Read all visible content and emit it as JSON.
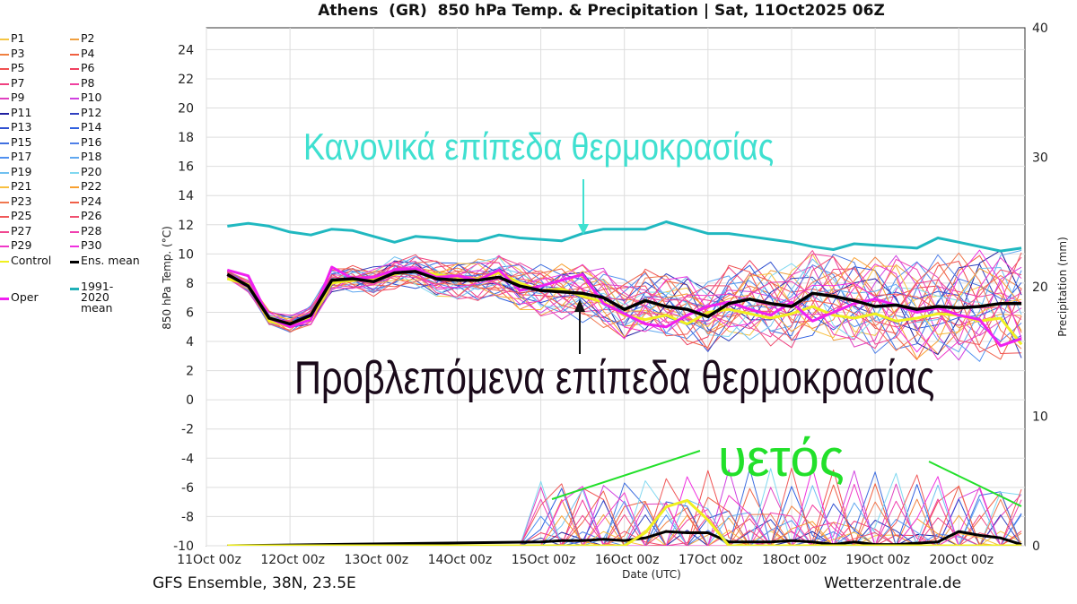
{
  "header": {
    "title": "Athens  (GR)  850 hPa Temp. & Precipitation | Sat, 11Oct2025 06Z"
  },
  "footer": {
    "model": "GFS Ensemble, 38N, 23.5E",
    "source": "Wetterzentrale.de"
  },
  "annotations": {
    "normal": "Κανονικά επίπεδα θερμοκρασίας",
    "forecast": "Προβλεπόμενα επίπεδα θερμοκρασίας",
    "rain": "υετός",
    "normal_color": "#3fe0d0",
    "forecast_color": "#1a0a1a",
    "rain_color": "#22e02a"
  },
  "legend": [
    {
      "label": "P1",
      "color": "#f5c542"
    },
    {
      "label": "P2",
      "color": "#f0a040"
    },
    {
      "label": "P3",
      "color": "#f08040"
    },
    {
      "label": "P4",
      "color": "#f06040"
    },
    {
      "label": "P5",
      "color": "#f05050"
    },
    {
      "label": "P6",
      "color": "#f04060"
    },
    {
      "label": "P7",
      "color": "#f04080"
    },
    {
      "label": "P8",
      "color": "#f040a0"
    },
    {
      "label": "P9",
      "color": "#e040c0"
    },
    {
      "label": "P10",
      "color": "#d040e0"
    },
    {
      "label": "P11",
      "color": "#2020a0"
    },
    {
      "label": "P12",
      "color": "#3040c0"
    },
    {
      "label": "P13",
      "color": "#3050d0"
    },
    {
      "label": "P14",
      "color": "#3060e0"
    },
    {
      "label": "P15",
      "color": "#4070e0"
    },
    {
      "label": "P16",
      "color": "#5080e8"
    },
    {
      "label": "P17",
      "color": "#5090f0"
    },
    {
      "label": "P18",
      "color": "#60a8f0"
    },
    {
      "label": "P19",
      "color": "#70c0f0"
    },
    {
      "label": "P20",
      "color": "#80d8f0"
    },
    {
      "label": "P21",
      "color": "#f8c040"
    },
    {
      "label": "P22",
      "color": "#f8a030"
    },
    {
      "label": "P23",
      "color": "#f07850"
    },
    {
      "label": "P24",
      "color": "#f06048"
    },
    {
      "label": "P25",
      "color": "#f05858"
    },
    {
      "label": "P26",
      "color": "#f05070"
    },
    {
      "label": "P27",
      "color": "#f04890"
    },
    {
      "label": "P28",
      "color": "#f040b0"
    },
    {
      "label": "P29",
      "color": "#f038c8"
    },
    {
      "label": "P30",
      "color": "#f030e0"
    },
    {
      "label": "Control",
      "color": "#f0f020"
    },
    {
      "label": "Ens. mean",
      "color": "#000000"
    },
    {
      "label": "1991-2020 mean",
      "color": "#20b0b8"
    },
    {
      "label": "Oper",
      "color": "#f020f0"
    }
  ],
  "chart_data": {
    "type": "line",
    "title": "Athens  (GR)  850 hPa Temp. & Precipitation | Sat, 11Oct2025 06Z",
    "xlabel": "Date (UTC)",
    "ylabel": "850 hPa Temp. (°C)",
    "y2label": "Precipitation (mm)",
    "ylim": [
      -10,
      25
    ],
    "y2lim": [
      0,
      40
    ],
    "yticks": [
      -10,
      -8,
      -6,
      -4,
      -2,
      0,
      2,
      4,
      6,
      8,
      10,
      12,
      14,
      16,
      18,
      20,
      22,
      24
    ],
    "y2ticks": [
      0,
      10,
      20,
      30,
      40
    ],
    "xticks": [
      "11Oct 00z",
      "12Oct 00z",
      "13Oct 00z",
      "14Oct 00z",
      "15Oct 00z",
      "16Oct 00z",
      "17Oct 00z",
      "18Oct 00z",
      "19Oct 00z",
      "20Oct 00z"
    ],
    "xlim_hours": [
      0,
      235
    ],
    "grid": true,
    "climate_mean": {
      "x": [
        6,
        12,
        18,
        24,
        30,
        36,
        42,
        48,
        54,
        60,
        66,
        72,
        78,
        84,
        90,
        96,
        102,
        108,
        114,
        120,
        126,
        132,
        138,
        144,
        150,
        156,
        162,
        168,
        174,
        180,
        186,
        192,
        198,
        204,
        210,
        216,
        222,
        228,
        234
      ],
      "y": [
        11.9,
        12.1,
        11.9,
        11.5,
        11.3,
        11.7,
        11.6,
        11.2,
        10.8,
        11.2,
        11.1,
        10.9,
        10.9,
        11.3,
        11.1,
        11.0,
        10.9,
        11.4,
        11.7,
        11.7,
        11.7,
        12.2,
        11.8,
        11.4,
        11.4,
        11.2,
        11.0,
        10.8,
        10.5,
        10.3,
        10.7,
        10.6,
        10.5,
        10.4,
        11.1,
        10.8,
        10.5,
        10.2,
        10.4
      ]
    },
    "ens_mean": {
      "x": [
        6,
        12,
        18,
        24,
        30,
        36,
        42,
        48,
        54,
        60,
        66,
        72,
        78,
        84,
        90,
        96,
        102,
        108,
        114,
        120,
        126,
        132,
        138,
        144,
        150,
        156,
        162,
        168,
        174,
        180,
        186,
        192,
        198,
        204,
        210,
        216,
        222,
        228,
        234
      ],
      "y": [
        8.6,
        7.8,
        5.6,
        5.2,
        5.8,
        8.2,
        8.3,
        8.1,
        8.7,
        8.8,
        8.3,
        8.2,
        8.2,
        8.4,
        7.8,
        7.5,
        7.4,
        7.3,
        7.0,
        6.2,
        6.8,
        6.4,
        6.2,
        5.7,
        6.6,
        6.9,
        6.6,
        6.4,
        7.3,
        7.1,
        6.8,
        6.4,
        6.5,
        6.2,
        6.4,
        6.3,
        6.4,
        6.6,
        6.6
      ]
    },
    "oper": {
      "x": [
        6,
        12,
        18,
        24,
        30,
        36,
        42,
        48,
        54,
        60,
        66,
        72,
        78,
        84,
        90,
        96,
        102,
        108,
        114,
        120,
        126,
        132,
        138,
        144,
        150,
        156,
        162,
        168,
        174,
        180,
        186,
        192,
        198,
        204,
        210,
        216,
        222,
        228,
        234
      ],
      "y": [
        8.9,
        8.5,
        5.6,
        5.0,
        5.5,
        9.1,
        8.3,
        8.4,
        8.9,
        9.0,
        8.4,
        8.5,
        8.2,
        8.9,
        7.5,
        7.8,
        8.2,
        8.6,
        6.6,
        5.9,
        5.2,
        5.0,
        5.8,
        6.4,
        6.7,
        6.2,
        5.8,
        6.7,
        5.4,
        6.0,
        6.6,
        6.9,
        6.5,
        6.0,
        6.3,
        5.8,
        5.5,
        3.7,
        4.2
      ]
    },
    "control": {
      "x": [
        6,
        12,
        18,
        24,
        30,
        36,
        42,
        48,
        54,
        60,
        66,
        72,
        78,
        84,
        90,
        96,
        102,
        108,
        114,
        120,
        126,
        132,
        138,
        144,
        150,
        156,
        162,
        168,
        174,
        180,
        186,
        192,
        198,
        204,
        210,
        216,
        222,
        228,
        234
      ],
      "y": [
        8.3,
        7.9,
        5.4,
        5.0,
        5.6,
        8.0,
        8.2,
        8.3,
        8.6,
        8.9,
        8.6,
        8.4,
        8.3,
        8.7,
        8.0,
        7.5,
        7.6,
        7.1,
        6.7,
        5.8,
        5.5,
        5.8,
        5.2,
        6.0,
        6.2,
        5.9,
        5.6,
        5.9,
        6.4,
        5.8,
        5.6,
        5.9,
        5.4,
        5.6,
        5.9,
        5.8,
        5.4,
        5.6,
        3.8
      ]
    },
    "precip_series": [
      {
        "name": "Ens. mean",
        "values_mm": {
          "x": [
            6,
            96,
            102,
            108,
            114,
            120,
            126,
            132,
            138,
            144,
            150,
            156,
            162,
            168,
            174,
            180,
            186,
            192,
            198,
            204,
            210,
            216,
            222,
            228,
            234
          ],
          "y": [
            0,
            0.3,
            0.4,
            0.4,
            0.5,
            0.4,
            0.6,
            1.1,
            1.0,
            1.0,
            0.3,
            0.3,
            0.3,
            0.4,
            0.3,
            0.1,
            0.3,
            0.1,
            0.1,
            0.2,
            0.3,
            1.1,
            0.8,
            0.6,
            0.1
          ]
        }
      },
      {
        "name": "Control",
        "values_mm": {
          "x": [
            6,
            120,
            126,
            132,
            138,
            144,
            150,
            234
          ],
          "y": [
            0,
            0,
            1.0,
            3.0,
            3.5,
            2.0,
            0,
            0
          ]
        }
      }
    ]
  }
}
